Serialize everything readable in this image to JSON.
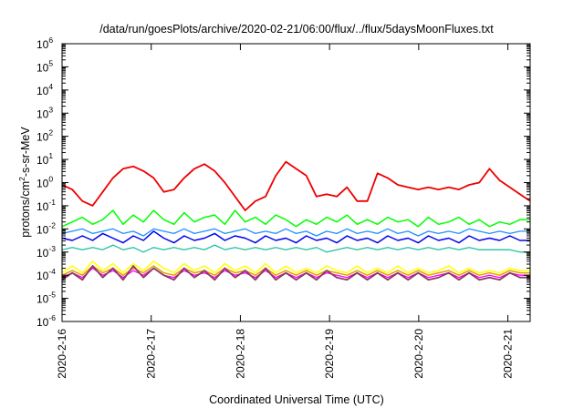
{
  "chart_data": {
    "type": "line",
    "title": "/data/run/goesPlots/archive/2020-02-21/06:00/flux/../flux/5daysMoonFluxes.txt",
    "xlabel": "Coordinated Universal Time (UTC)",
    "ylabel": {
      "pre": "protons/cm",
      "sup": "2",
      "post": "-s-sr-MeV"
    },
    "yscale": "log",
    "ylim": [
      1e-06,
      1000000.0
    ],
    "yticks": [
      {
        "base": "10",
        "exp": "-6",
        "v": -6
      },
      {
        "base": "10",
        "exp": "-5",
        "v": -5
      },
      {
        "base": "10",
        "exp": "-4",
        "v": -4
      },
      {
        "base": "10",
        "exp": "-3",
        "v": -3
      },
      {
        "base": "10",
        "exp": "-2",
        "v": -2
      },
      {
        "base": "10",
        "exp": "-1",
        "v": -1
      },
      {
        "base": "10",
        "exp": "0",
        "v": 0
      },
      {
        "base": "10",
        "exp": "1",
        "v": 1
      },
      {
        "base": "10",
        "exp": "2",
        "v": 2
      },
      {
        "base": "10",
        "exp": "3",
        "v": 3
      },
      {
        "base": "10",
        "exp": "4",
        "v": 4
      },
      {
        "base": "10",
        "exp": "5",
        "v": 5
      },
      {
        "base": "10",
        "exp": "6",
        "v": 6
      }
    ],
    "xlim": [
      "2020-02-16",
      "2020-02-21T06:00"
    ],
    "xticks": [
      "2020-2-16",
      "2020-2-17",
      "2020-2-18",
      "2020-2-19",
      "2020-2-20",
      "2020-2-21"
    ],
    "grid": false,
    "legend": "none",
    "series": [
      {
        "color": "#ee0000",
        "lw": 1.8,
        "y_log10": [
          -0.1,
          -0.3,
          -0.8,
          -1.0,
          -0.4,
          0.2,
          0.6,
          0.7,
          0.5,
          0.2,
          -0.4,
          -0.3,
          0.2,
          0.6,
          0.8,
          0.5,
          0.0,
          -0.6,
          -1.2,
          -0.8,
          -0.6,
          0.3,
          0.9,
          0.6,
          0.3,
          -0.6,
          -0.5,
          -0.6,
          -0.2,
          -0.8,
          -0.8,
          0.4,
          0.2,
          -0.1,
          -0.2,
          -0.3,
          -0.2,
          -0.3,
          -0.2,
          -0.3,
          -0.1,
          0.0,
          0.6,
          0.1,
          -0.2,
          -0.5,
          -0.8
        ]
      },
      {
        "color": "#00ff00",
        "lw": 1.5,
        "y_log10": [
          -1.9,
          -1.7,
          -1.5,
          -1.8,
          -1.6,
          -1.2,
          -1.8,
          -1.4,
          -1.7,
          -1.2,
          -1.6,
          -1.8,
          -1.3,
          -1.7,
          -1.5,
          -1.4,
          -1.8,
          -1.2,
          -1.7,
          -1.5,
          -1.8,
          -1.4,
          -1.6,
          -1.9,
          -1.6,
          -1.8,
          -1.5,
          -1.7,
          -1.4,
          -1.8,
          -1.6,
          -1.8,
          -1.5,
          -1.7,
          -1.6,
          -1.9,
          -1.5,
          -1.8,
          -1.7,
          -1.5,
          -1.8,
          -1.6,
          -1.9,
          -1.7,
          -1.8,
          -1.6,
          -1.6
        ]
      },
      {
        "color": "#0000ee",
        "lw": 1.5,
        "y_log10": [
          -2.4,
          -2.5,
          -2.3,
          -2.5,
          -2.2,
          -2.4,
          -2.6,
          -2.3,
          -2.5,
          -2.1,
          -2.4,
          -2.6,
          -2.3,
          -2.5,
          -2.4,
          -2.2,
          -2.5,
          -2.3,
          -2.4,
          -2.6,
          -2.3,
          -2.5,
          -2.4,
          -2.6,
          -2.3,
          -2.5,
          -2.4,
          -2.6,
          -2.3,
          -2.5,
          -2.4,
          -2.6,
          -2.3,
          -2.5,
          -2.4,
          -2.6,
          -2.3,
          -2.5,
          -2.4,
          -2.6,
          -2.3,
          -2.5,
          -2.4,
          -2.5,
          -2.3,
          -2.5,
          -2.5
        ]
      },
      {
        "color": "#1e90ff",
        "lw": 1.3,
        "y_log10": [
          -2.2,
          -2.1,
          -2.0,
          -2.2,
          -2.1,
          -2.0,
          -2.2,
          -2.1,
          -2.3,
          -2.0,
          -2.1,
          -2.2,
          -2.0,
          -2.2,
          -2.1,
          -2.0,
          -2.2,
          -2.1,
          -2.0,
          -2.2,
          -2.1,
          -2.2,
          -2.0,
          -2.2,
          -2.1,
          -2.3,
          -2.1,
          -2.2,
          -2.0,
          -2.2,
          -2.1,
          -2.2,
          -2.0,
          -2.2,
          -2.1,
          -2.3,
          -2.1,
          -2.2,
          -2.1,
          -2.2,
          -2.0,
          -2.1,
          -2.2,
          -2.1,
          -2.2,
          -2.1,
          -2.1
        ]
      },
      {
        "color": "#20c0a0",
        "lw": 1.3,
        "y_log10": [
          -2.9,
          -2.8,
          -2.9,
          -2.8,
          -2.9,
          -2.7,
          -2.9,
          -2.8,
          -3.0,
          -2.8,
          -2.9,
          -2.8,
          -2.9,
          -2.8,
          -2.9,
          -2.7,
          -2.9,
          -2.8,
          -2.9,
          -2.8,
          -2.9,
          -2.8,
          -2.9,
          -2.8,
          -2.9,
          -2.8,
          -3.0,
          -2.9,
          -2.8,
          -2.9,
          -2.8,
          -2.9,
          -2.8,
          -2.9,
          -2.8,
          -2.9,
          -2.8,
          -2.9,
          -2.8,
          -2.9,
          -2.8,
          -2.9,
          -2.9,
          -2.9,
          -2.9,
          -3.0,
          -3.0
        ]
      },
      {
        "color": "#ffff00",
        "lw": 1.5,
        "y_log10": [
          -3.9,
          -3.6,
          -3.9,
          -3.4,
          -3.8,
          -3.5,
          -3.9,
          -3.5,
          -3.8,
          -3.4,
          -3.7,
          -3.9,
          -3.5,
          -3.8,
          -3.6,
          -3.9,
          -3.5,
          -3.8,
          -3.6,
          -3.9,
          -3.5,
          -3.9,
          -3.6,
          -3.9,
          -3.7,
          -3.9,
          -3.6,
          -3.8,
          -3.9,
          -3.6,
          -3.9,
          -3.7,
          -3.9,
          -3.6,
          -3.9,
          -3.7,
          -3.9,
          -3.8,
          -3.6,
          -3.9,
          -3.7,
          -3.9,
          -3.8,
          -3.9,
          -3.7,
          -3.8,
          -3.8
        ]
      },
      {
        "color": "#e0a000",
        "lw": 1.5,
        "y_log10": [
          -4.0,
          -3.8,
          -4.0,
          -3.6,
          -3.9,
          -3.7,
          -4.0,
          -3.7,
          -3.9,
          -3.6,
          -3.9,
          -4.0,
          -3.7,
          -3.9,
          -3.8,
          -4.0,
          -3.7,
          -3.9,
          -3.8,
          -4.0,
          -3.7,
          -4.0,
          -3.8,
          -4.0,
          -3.8,
          -4.0,
          -3.8,
          -3.9,
          -4.0,
          -3.8,
          -4.0,
          -3.8,
          -4.0,
          -3.8,
          -4.0,
          -3.8,
          -4.0,
          -3.9,
          -3.8,
          -4.0,
          -3.8,
          -4.0,
          -3.9,
          -4.0,
          -3.8,
          -3.9,
          -3.9
        ]
      },
      {
        "color": "#ff00ff",
        "lw": 1.3,
        "y_log10": [
          -4.1,
          -3.9,
          -4.1,
          -3.7,
          -4.0,
          -3.8,
          -4.1,
          -3.8,
          -4.0,
          -3.7,
          -4.0,
          -4.1,
          -3.8,
          -4.0,
          -3.9,
          -4.1,
          -3.8,
          -4.0,
          -3.9,
          -4.1,
          -3.8,
          -4.1,
          -3.9,
          -4.1,
          -3.9,
          -4.1,
          -3.9,
          -4.0,
          -4.1,
          -3.9,
          -4.1,
          -3.9,
          -4.1,
          -3.9,
          -4.1,
          -3.9,
          -4.1,
          -4.0,
          -3.9,
          -4.1,
          -3.9,
          -4.1,
          -4.0,
          -4.1,
          -3.9,
          -4.0,
          -4.0
        ]
      },
      {
        "color": "#8b3a62",
        "lw": 1.8,
        "y_log10": [
          -4.2,
          -3.9,
          -4.2,
          -3.6,
          -4.1,
          -3.7,
          -4.2,
          -3.6,
          -4.1,
          -3.7,
          -4.0,
          -4.2,
          -3.7,
          -4.1,
          -3.8,
          -4.2,
          -3.7,
          -4.1,
          -3.8,
          -4.2,
          -3.7,
          -4.2,
          -3.9,
          -4.2,
          -3.9,
          -4.2,
          -3.8,
          -4.1,
          -4.2,
          -3.9,
          -4.2,
          -3.9,
          -4.2,
          -3.9,
          -4.2,
          -3.9,
          -4.2,
          -4.1,
          -3.9,
          -4.2,
          -3.9,
          -4.2,
          -4.1,
          -4.2,
          -3.9,
          -4.1,
          -4.1
        ]
      }
    ]
  }
}
